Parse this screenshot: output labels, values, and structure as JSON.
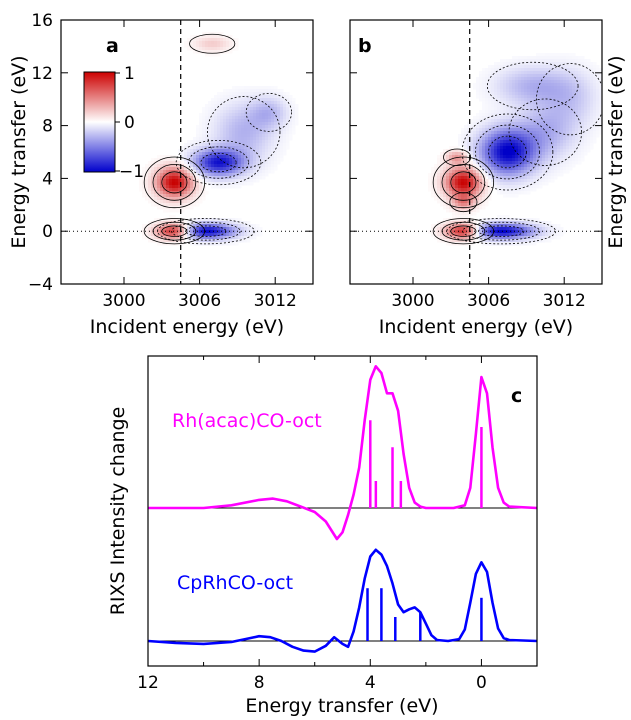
{
  "chart_data": [
    {
      "type": "heatmap",
      "panel_label": "a",
      "xlabel": "Incident energy (eV)",
      "ylabel": "Energy transfer (eV)",
      "xlim": [
        2995,
        3015
      ],
      "ylim": [
        -4,
        16
      ],
      "x_ticks": [
        3000,
        3006,
        3012
      ],
      "y_ticks": [
        -4,
        0,
        4,
        8,
        12,
        16
      ],
      "vline_x": 3004.5,
      "hline_y": 0,
      "colorbar": {
        "ticks": [
          1,
          0,
          -1
        ],
        "tick_labels": [
          "1",
          "0",
          "−1"
        ],
        "colors": {
          "pos": "#cc0000",
          "zero": "#ffffff",
          "neg": "#0000cc"
        }
      },
      "features": [
        {
          "x": 3004.0,
          "y": 3.7,
          "amp": 1.0,
          "sx": 1.0,
          "sy": 0.8
        },
        {
          "x": 3004.0,
          "y": 0.0,
          "amp": 1.0,
          "sx": 1.0,
          "sy": 0.4
        },
        {
          "x": 3006.5,
          "y": 0.0,
          "amp": -1.0,
          "sx": 1.6,
          "sy": 0.4
        },
        {
          "x": 3007.5,
          "y": 5.2,
          "amp": -0.9,
          "sx": 1.4,
          "sy": 0.7
        },
        {
          "x": 3009.5,
          "y": 7.5,
          "amp": -0.3,
          "sx": 1.6,
          "sy": 1.5
        },
        {
          "x": 3011.5,
          "y": 9.0,
          "amp": -0.25,
          "sx": 1.0,
          "sy": 0.8
        },
        {
          "x": 3007.0,
          "y": 14.2,
          "amp": 0.2,
          "sx": 1.0,
          "sy": 0.4
        }
      ]
    },
    {
      "type": "heatmap",
      "panel_label": "b",
      "xlabel": "Incident energy (eV)",
      "ylabel": "Energy transfer (eV)",
      "xlim": [
        2995,
        3015
      ],
      "ylim": [
        -4,
        16
      ],
      "x_ticks": [
        3000,
        3006,
        3012
      ],
      "y_ticks": [
        -4,
        0,
        4,
        8,
        12,
        16
      ],
      "vline_x": 3004.5,
      "hline_y": 0,
      "features": [
        {
          "x": 3004.0,
          "y": 3.7,
          "amp": 1.0,
          "sx": 1.0,
          "sy": 0.8
        },
        {
          "x": 3004.0,
          "y": 2.2,
          "amp": 0.4,
          "sx": 0.6,
          "sy": 0.4
        },
        {
          "x": 3003.5,
          "y": 5.6,
          "amp": 0.4,
          "sx": 0.6,
          "sy": 0.35
        },
        {
          "x": 3004.0,
          "y": 0.0,
          "amp": 1.0,
          "sx": 1.0,
          "sy": 0.4
        },
        {
          "x": 3007.0,
          "y": 0.0,
          "amp": -1.0,
          "sx": 1.8,
          "sy": 0.4
        },
        {
          "x": 3007.5,
          "y": 6.0,
          "amp": -1.0,
          "sx": 1.5,
          "sy": 1.2
        },
        {
          "x": 3010.5,
          "y": 7.5,
          "amp": -0.3,
          "sx": 1.6,
          "sy": 1.4
        },
        {
          "x": 3009.5,
          "y": 11.0,
          "amp": -0.3,
          "sx": 2.0,
          "sy": 1.0
        },
        {
          "x": 3012.5,
          "y": 10.0,
          "amp": -0.2,
          "sx": 1.5,
          "sy": 1.5
        }
      ]
    },
    {
      "type": "line",
      "panel_label": "c",
      "xlabel": "Energy transfer (eV)",
      "ylabel": "RIXS Intensity change",
      "xlim": [
        12,
        -2
      ],
      "x_ticks": [
        12,
        8,
        4,
        0
      ],
      "series": [
        {
          "name": "Rh(acac)CO-oct",
          "color": "#ff00ff",
          "baseline": 0,
          "x": [
            12,
            10,
            9,
            8,
            7.5,
            7,
            6.5,
            6,
            5.6,
            5.2,
            5.0,
            4.8,
            4.6,
            4.4,
            4.2,
            4.0,
            3.8,
            3.6,
            3.4,
            3.2,
            3.0,
            2.8,
            2.6,
            2.4,
            2.2,
            2.0,
            1.5,
            1.0,
            0.6,
            0.4,
            0.2,
            0.0,
            -0.2,
            -0.4,
            -0.6,
            -0.8,
            -1.0,
            -2
          ],
          "y": [
            0,
            0,
            0.02,
            0.06,
            0.07,
            0.05,
            0.01,
            -0.03,
            -0.1,
            -0.23,
            -0.18,
            -0.05,
            0.1,
            0.3,
            0.65,
            0.95,
            1.05,
            1.0,
            0.85,
            0.85,
            0.72,
            0.4,
            0.15,
            0.04,
            0.01,
            0,
            0,
            0,
            0.02,
            0.15,
            0.55,
            0.97,
            0.85,
            0.45,
            0.15,
            0.04,
            0.01,
            0
          ]
        },
        {
          "name": "CpRhCO-oct",
          "color": "#0000ff",
          "baseline": 0,
          "x": [
            12,
            11,
            10,
            9,
            8.5,
            8,
            7.6,
            7.2,
            6.8,
            6.4,
            6.0,
            5.6,
            5.3,
            5.0,
            4.8,
            4.6,
            4.4,
            4.2,
            4.0,
            3.8,
            3.6,
            3.4,
            3.2,
            3.0,
            2.8,
            2.6,
            2.4,
            2.2,
            2.0,
            1.8,
            1.6,
            1.2,
            0.8,
            0.6,
            0.4,
            0.2,
            0.0,
            -0.2,
            -0.4,
            -0.6,
            -0.8,
            -1.0,
            -2
          ],
          "y": [
            0,
            -0.02,
            -0.03,
            -0.01,
            0.02,
            0.05,
            0.04,
            0.0,
            -0.06,
            -0.1,
            -0.11,
            -0.05,
            0.04,
            -0.03,
            -0.06,
            0.1,
            0.35,
            0.65,
            0.88,
            0.95,
            0.9,
            0.78,
            0.6,
            0.38,
            0.3,
            0.33,
            0.35,
            0.3,
            0.18,
            0.06,
            0.01,
            0,
            0.02,
            0.12,
            0.4,
            0.7,
            0.82,
            0.72,
            0.4,
            0.13,
            0.03,
            0.01,
            0
          ]
        }
      ],
      "sticks": [
        {
          "series": "Rh(acac)CO-oct",
          "x": [
            4.0,
            3.8,
            3.2,
            2.9,
            0.0
          ],
          "h": [
            0.65,
            0.2,
            0.45,
            0.2,
            0.6
          ]
        },
        {
          "series": "CpRhCO-oct",
          "x": [
            4.1,
            3.6,
            3.1,
            2.2,
            0.0
          ],
          "h": [
            0.55,
            0.55,
            0.25,
            0.3,
            0.45
          ]
        }
      ]
    }
  ]
}
